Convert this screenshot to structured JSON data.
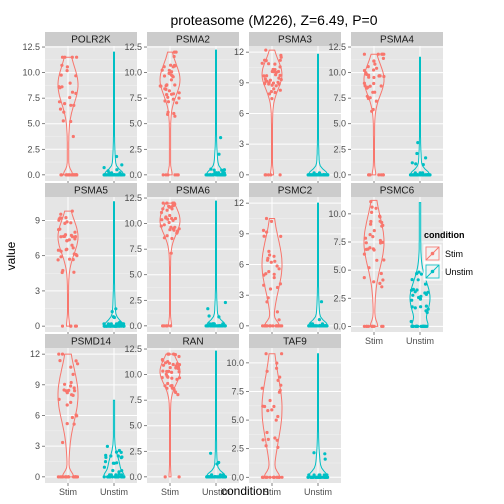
{
  "chart_data": {
    "type": "violin",
    "title": "proteasome (M226), Z=6.49, P=0",
    "xlabel": "condition",
    "ylabel": "value",
    "categories": [
      "Stim",
      "Unstim"
    ],
    "legend": {
      "title": "condition",
      "entries": [
        "Stim",
        "Unstim"
      ],
      "colors": [
        "#F8766D",
        "#00BFC4"
      ],
      "placement": "right"
    },
    "panel_background": "#E5E5E5",
    "grid": true,
    "panels": [
      {
        "name": "POLR2K",
        "ylim": [
          -0.6,
          12.6
        ],
        "yticks": [
          "0.0",
          "2.5",
          "5.0",
          "7.5",
          "10.0",
          "12.5"
        ],
        "tick_values": [
          0,
          2.5,
          5,
          7.5,
          10,
          12.5
        ],
        "stim": {
          "max": 11.5,
          "zero_frac": 0.3,
          "peak": 8.8,
          "spread": 1.8
        },
        "unstim": {
          "max": 12.0,
          "zero_frac": 0.85,
          "peak": 0,
          "spread": 1.5
        }
      },
      {
        "name": "PSMA2",
        "ylim": [
          -0.6,
          12.6
        ],
        "yticks": [
          "0.0",
          "2.5",
          "5.0",
          "7.5",
          "10.0",
          "12.5"
        ],
        "tick_values": [
          0,
          2.5,
          5,
          7.5,
          10,
          12.5
        ],
        "stim": {
          "max": 12.0,
          "zero_frac": 0.15,
          "peak": 9.3,
          "spread": 1.5
        },
        "unstim": {
          "max": 12.2,
          "zero_frac": 0.8,
          "peak": 0,
          "spread": 1.5
        }
      },
      {
        "name": "PSMA3",
        "ylim": [
          -0.6,
          12.6
        ],
        "yticks": [
          "0",
          "3",
          "6",
          "9",
          "12"
        ],
        "tick_values": [
          0,
          3,
          6,
          9,
          12
        ],
        "stim": {
          "max": 12.2,
          "zero_frac": 0.1,
          "peak": 9.8,
          "spread": 1.4
        },
        "unstim": {
          "max": 11.8,
          "zero_frac": 0.9,
          "peak": 0,
          "spread": 1.5
        }
      },
      {
        "name": "PSMA4",
        "ylim": [
          -0.6,
          12.6
        ],
        "yticks": [
          "0.0",
          "2.5",
          "5.0",
          "7.5",
          "10.0",
          "12.5"
        ],
        "tick_values": [
          0,
          2.5,
          5,
          7.5,
          10,
          12.5
        ],
        "stim": {
          "max": 11.8,
          "zero_frac": 0.12,
          "peak": 9.3,
          "spread": 1.5
        },
        "unstim": {
          "max": 11.5,
          "zero_frac": 0.85,
          "peak": 0,
          "spread": 1.5
        }
      },
      {
        "name": "PSMA5",
        "ylim": [
          -0.5,
          11.0
        ],
        "yticks": [
          "0",
          "3",
          "6",
          "9"
        ],
        "tick_values": [
          0,
          3,
          6,
          9
        ],
        "stim": {
          "max": 9.8,
          "zero_frac": 0.1,
          "peak": 7.6,
          "spread": 1.4
        },
        "unstim": {
          "max": 10.6,
          "zero_frac": 0.85,
          "peak": 0,
          "spread": 1.5
        }
      },
      {
        "name": "PSMA6",
        "ylim": [
          -0.6,
          12.6
        ],
        "yticks": [
          "0.0",
          "2.5",
          "5.0",
          "7.5",
          "10.0",
          "12.5"
        ],
        "tick_values": [
          0,
          2.5,
          5,
          7.5,
          10,
          12.5
        ],
        "stim": {
          "max": 12.0,
          "zero_frac": 0.1,
          "peak": 10.3,
          "spread": 1.3
        },
        "unstim": {
          "max": 12.2,
          "zero_frac": 0.85,
          "peak": 0,
          "spread": 1.5
        }
      },
      {
        "name": "PSMC2",
        "ylim": [
          -0.6,
          12.6
        ],
        "yticks": [
          "0",
          "3",
          "6",
          "9",
          "12"
        ],
        "tick_values": [
          0,
          3,
          6,
          9,
          12
        ],
        "stim": {
          "max": 10.5,
          "zero_frac": 0.4,
          "peak": 6.0,
          "spread": 2.5
        },
        "unstim": {
          "max": 12.0,
          "zero_frac": 0.85,
          "peak": 0,
          "spread": 1.5
        }
      },
      {
        "name": "PSMC6",
        "ylim": [
          -0.5,
          11.5
        ],
        "yticks": [
          "0.0",
          "2.5",
          "5.0",
          "7.5",
          "10.0"
        ],
        "tick_values": [
          0,
          2.5,
          5,
          7.5,
          10
        ],
        "stim": {
          "max": 11.2,
          "zero_frac": 0.25,
          "peak": 7.5,
          "spread": 2.2
        },
        "unstim": {
          "max": 11.0,
          "zero_frac": 0.35,
          "peak": 2.5,
          "spread": 1.5
        }
      },
      {
        "name": "PSMD14",
        "ylim": [
          -0.6,
          12.6
        ],
        "yticks": [
          "0",
          "3",
          "6",
          "9",
          "12"
        ],
        "tick_values": [
          0,
          3,
          6,
          9,
          12
        ],
        "stim": {
          "max": 12.0,
          "zero_frac": 0.35,
          "peak": 8.0,
          "spread": 2.5
        },
        "unstim": {
          "max": 7.5,
          "zero_frac": 0.55,
          "peak": 1.0,
          "spread": 1.0
        }
      },
      {
        "name": "RAN",
        "ylim": [
          -0.6,
          12.6
        ],
        "yticks": [
          "0.0",
          "2.5",
          "5.0",
          "7.5",
          "10.0",
          "12.5"
        ],
        "tick_values": [
          0,
          2.5,
          5,
          7.5,
          10,
          12.5
        ],
        "stim": {
          "max": 12.0,
          "zero_frac": 0.05,
          "peak": 10.3,
          "spread": 1.2
        },
        "unstim": {
          "max": 12.3,
          "zero_frac": 0.9,
          "peak": 0,
          "spread": 1.5
        }
      },
      {
        "name": "TAF9",
        "ylim": [
          -0.5,
          11.3
        ],
        "yticks": [
          "0.0",
          "2.5",
          "5.0",
          "7.5",
          "10.0"
        ],
        "tick_values": [
          0,
          2.5,
          5,
          7.5,
          10
        ],
        "stim": {
          "max": 10.8,
          "zero_frac": 0.4,
          "peak": 6.0,
          "spread": 2.8
        },
        "unstim": {
          "max": 10.8,
          "zero_frac": 0.75,
          "peak": 0,
          "spread": 1.5
        }
      }
    ]
  }
}
